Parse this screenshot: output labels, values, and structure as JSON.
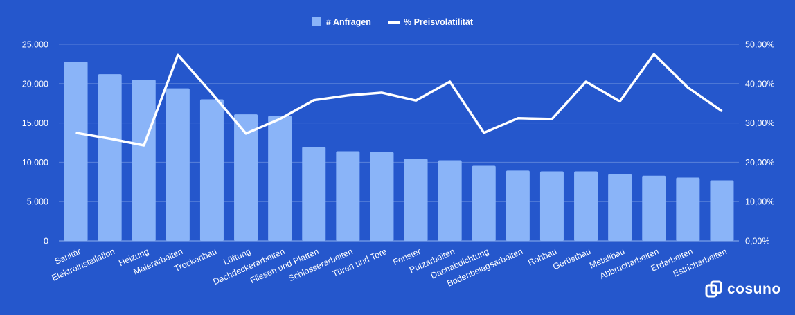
{
  "brand": {
    "name": "cosuno"
  },
  "colors": {
    "background": "#2557cc",
    "bar": "#8ab4f8",
    "line": "#ffffff",
    "grid": "#5a82da"
  },
  "chart_data": {
    "type": "bar",
    "legend": {
      "position": "top-center"
    },
    "categories": [
      "Sanitär",
      "Elektroinstallation",
      "Heizung",
      "Malerarbeiten",
      "Trockenbau",
      "Lüftung",
      "Dachdeckerarbeiten",
      "Fliesen und Platten",
      "Schlosserarbeiten",
      "Türen und Tore",
      "Fenster",
      "Putzarbeiten",
      "Dachabdichtung",
      "Bodenbelagsarbeiten",
      "Rohbau",
      "Gerüstbau",
      "Metallbau",
      "Abbrucharbeiten",
      "Erdarbeiten",
      "Estricharbeiten"
    ],
    "series": [
      {
        "name": "# Anfragen",
        "type": "bar",
        "axis": "left",
        "values": [
          22800,
          21200,
          20500,
          19400,
          18000,
          16100,
          15900,
          11950,
          11400,
          11300,
          10450,
          10250,
          9550,
          8950,
          8850,
          8850,
          8500,
          8300,
          8050,
          7700
        ]
      },
      {
        "name": "% Preisvolatilität",
        "type": "line",
        "axis": "right",
        "values": [
          27.5,
          26.0,
          24.3,
          47.3,
          37.5,
          27.3,
          31.0,
          35.8,
          37.0,
          37.7,
          35.7,
          40.5,
          27.5,
          31.2,
          31.0,
          40.5,
          35.5,
          47.5,
          39.0,
          33.0
        ]
      }
    ],
    "y_left": {
      "lim": [
        0,
        25000
      ],
      "ticks": [
        "0",
        "5.000",
        "10.000",
        "15.000",
        "20.000",
        "25.000"
      ]
    },
    "y_right": {
      "lim": [
        0,
        50
      ],
      "ticks": [
        "0,00%",
        "10,00%",
        "20,00%",
        "30,00%",
        "40,00%",
        "50,00%"
      ]
    },
    "grid": true
  }
}
